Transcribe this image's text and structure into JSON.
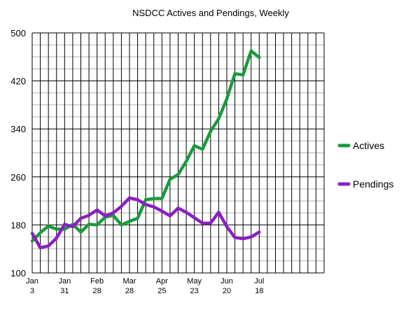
{
  "chart_data": {
    "type": "line",
    "title": "NSDCC Actives and Pendings, Weekly",
    "xlabel": "",
    "ylabel": "",
    "ylim": [
      100,
      500
    ],
    "yticks": [
      100,
      180,
      260,
      340,
      420,
      500
    ],
    "x_tick_labels": [
      {
        "line1": "Jan",
        "line2": "3"
      },
      {
        "line1": "Jan",
        "line2": "31"
      },
      {
        "line1": "Feb",
        "line2": "28"
      },
      {
        "line1": "Mar",
        "line2": "28"
      },
      {
        "line1": "Apr",
        "line2": "25"
      },
      {
        "line1": "May",
        "line2": "23"
      },
      {
        "line1": "Jun",
        "line2": "20"
      },
      {
        "line1": "Jul",
        "line2": "18"
      }
    ],
    "grid": true,
    "legend_position": "right",
    "series": [
      {
        "name": "Actives",
        "color": "#1a9a3c",
        "values": [
          153,
          167,
          178,
          173,
          173,
          181,
          168,
          181,
          180,
          193,
          196,
          180,
          186,
          191,
          222,
          224,
          224,
          256,
          264,
          286,
          312,
          306,
          336,
          357,
          390,
          432,
          430,
          470,
          459
        ]
      },
      {
        "name": "Pendings",
        "color": "#8b1fbf",
        "values": [
          166,
          142,
          145,
          158,
          181,
          177,
          191,
          196,
          205,
          195,
          200,
          211,
          225,
          222,
          214,
          210,
          203,
          195,
          208,
          201,
          192,
          183,
          183,
          201,
          177,
          159,
          157,
          160,
          168
        ]
      }
    ]
  }
}
